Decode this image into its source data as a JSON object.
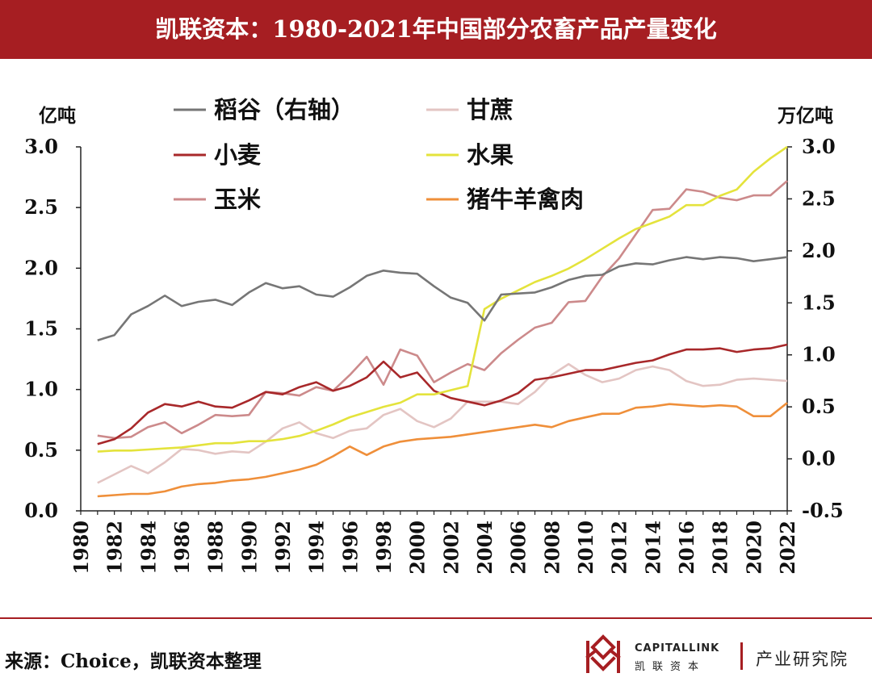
{
  "header": {
    "title": "凯联资本：1980-2021年中国部分农畜产品产量变化",
    "bg_color": "#a61e22"
  },
  "footer": {
    "source": "来源：Choice，凯联资本整理",
    "brand_en": "CAPITALLINK",
    "brand_cn": "凯联资本",
    "dept": "产业研究院",
    "logo_icon": "capitallink-logo-icon"
  },
  "chart_data": {
    "type": "line",
    "title": "",
    "left_unit": "亿吨",
    "right_unit": "万亿吨",
    "ylim_left": [
      0.0,
      3.0
    ],
    "ylim_right": [
      -0.5,
      3.0
    ],
    "xlim": [
      1980,
      2022
    ],
    "left_ticks": [
      "0.0",
      "0.5",
      "1.0",
      "1.5",
      "2.0",
      "2.5",
      "3.0"
    ],
    "right_ticks": [
      "-0.5",
      "0.0",
      "0.5",
      "1.0",
      "1.5",
      "2.0",
      "2.5",
      "3.0"
    ],
    "x_ticks": [
      "1980",
      "1982",
      "1984",
      "1986",
      "1988",
      "1990",
      "1992",
      "1994",
      "1996",
      "1998",
      "2000",
      "2002",
      "2004",
      "2006",
      "2008",
      "2010",
      "2012",
      "2014",
      "2016",
      "2018",
      "2020",
      "2022"
    ],
    "grid": false,
    "legend_position": "top",
    "x": [
      1981,
      1982,
      1983,
      1984,
      1985,
      1986,
      1987,
      1988,
      1989,
      1990,
      1991,
      1992,
      1993,
      1994,
      1995,
      1996,
      1997,
      1998,
      1999,
      2000,
      2001,
      2002,
      2003,
      2004,
      2005,
      2006,
      2007,
      2008,
      2009,
      2010,
      2011,
      2012,
      2013,
      2014,
      2015,
      2016,
      2017,
      2018,
      2019,
      2020,
      2021,
      2022
    ],
    "series": [
      {
        "name": "稻谷（右轴）",
        "axis": "right",
        "color": "#767676",
        "values": [
          1.14,
          1.19,
          1.39,
          1.47,
          1.57,
          1.47,
          1.51,
          1.53,
          1.48,
          1.6,
          1.69,
          1.64,
          1.66,
          1.58,
          1.56,
          1.65,
          1.76,
          1.81,
          1.79,
          1.78,
          1.66,
          1.55,
          1.5,
          1.33,
          1.58,
          1.59,
          1.6,
          1.65,
          1.72,
          1.76,
          1.77,
          1.85,
          1.88,
          1.87,
          1.91,
          1.94,
          1.92,
          1.94,
          1.93,
          1.9,
          1.92,
          1.94
        ]
      },
      {
        "name": "甘蔗",
        "axis": "left",
        "color": "#e3c5c3",
        "values": [
          0.23,
          0.3,
          0.37,
          0.31,
          0.4,
          0.51,
          0.5,
          0.47,
          0.49,
          0.48,
          0.57,
          0.68,
          0.73,
          0.64,
          0.6,
          0.66,
          0.68,
          0.79,
          0.84,
          0.74,
          0.69,
          0.76,
          0.9,
          0.9,
          0.9,
          0.88,
          0.98,
          1.12,
          1.21,
          1.12,
          1.06,
          1.09,
          1.16,
          1.19,
          1.16,
          1.07,
          1.03,
          1.04,
          1.08,
          1.09,
          1.08,
          1.07
        ]
      },
      {
        "name": "小麦",
        "axis": "left",
        "color": "#a8282a",
        "values": [
          0.55,
          0.59,
          0.68,
          0.81,
          0.88,
          0.86,
          0.9,
          0.86,
          0.85,
          0.91,
          0.98,
          0.96,
          1.02,
          1.06,
          0.99,
          1.03,
          1.1,
          1.23,
          1.1,
          1.14,
          0.99,
          0.93,
          0.9,
          0.87,
          0.91,
          0.97,
          1.08,
          1.1,
          1.13,
          1.16,
          1.16,
          1.19,
          1.22,
          1.24,
          1.29,
          1.33,
          1.33,
          1.34,
          1.31,
          1.33,
          1.34,
          1.37
        ]
      },
      {
        "name": "水果",
        "axis": "right",
        "color": "#e4e33c",
        "values": [
          0.07,
          0.08,
          0.08,
          0.09,
          0.1,
          0.11,
          0.13,
          0.15,
          0.15,
          0.17,
          0.17,
          0.19,
          0.22,
          0.27,
          0.33,
          0.4,
          0.45,
          0.5,
          0.54,
          0.62,
          0.62,
          0.66,
          0.7,
          1.44,
          1.54,
          1.62,
          1.7,
          1.76,
          1.83,
          1.92,
          2.02,
          2.12,
          2.21,
          2.27,
          2.33,
          2.44,
          2.44,
          2.53,
          2.59,
          2.76,
          2.89,
          3.0
        ]
      },
      {
        "name": "玉米",
        "axis": "left",
        "color": "#cc8a8b",
        "values": [
          0.62,
          0.6,
          0.61,
          0.69,
          0.73,
          0.64,
          0.71,
          0.79,
          0.78,
          0.79,
          0.98,
          0.97,
          0.95,
          1.02,
          0.99,
          1.12,
          1.27,
          1.04,
          1.33,
          1.28,
          1.06,
          1.14,
          1.21,
          1.16,
          1.3,
          1.41,
          1.51,
          1.55,
          1.72,
          1.73,
          1.93,
          2.08,
          2.28,
          2.48,
          2.49,
          2.65,
          2.63,
          2.58,
          2.56,
          2.6,
          2.6,
          2.72
        ]
      },
      {
        "name": "猪牛羊禽肉",
        "axis": "left",
        "color": "#ef8f3a",
        "values": [
          0.12,
          0.13,
          0.14,
          0.14,
          0.16,
          0.2,
          0.22,
          0.23,
          0.25,
          0.26,
          0.28,
          0.31,
          0.34,
          0.38,
          0.45,
          0.53,
          0.46,
          0.53,
          0.57,
          0.59,
          0.6,
          0.61,
          0.63,
          0.65,
          0.67,
          0.69,
          0.71,
          0.69,
          0.74,
          0.77,
          0.8,
          0.8,
          0.85,
          0.86,
          0.88,
          0.87,
          0.86,
          0.87,
          0.86,
          0.78,
          0.78,
          0.89
        ]
      }
    ]
  }
}
